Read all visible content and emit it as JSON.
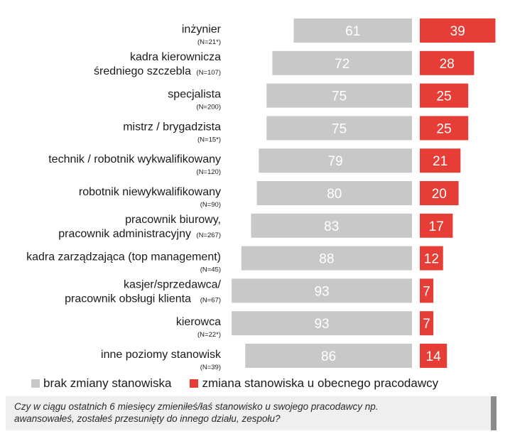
{
  "chart_data": {
    "type": "bar",
    "orientation": "horizontal-diverging",
    "categories": [
      {
        "label": [
          "inżynier"
        ],
        "n": "(N=21*)"
      },
      {
        "label": [
          "kadra kierownicza",
          "średniego szczebla"
        ],
        "n": "(N=107)"
      },
      {
        "label": [
          "specjalista"
        ],
        "n": "(N=200)"
      },
      {
        "label": [
          "mistrz / brygadzista"
        ],
        "n": "(N=15*)"
      },
      {
        "label": [
          "technik / robotnik wykwalifikowany"
        ],
        "n": "(N=120)"
      },
      {
        "label": [
          "robotnik niewykwalifikowany"
        ],
        "n": "(N=90)"
      },
      {
        "label": [
          "pracownik biurowy,",
          "pracownik administracyjny"
        ],
        "n": "(N=267)"
      },
      {
        "label": [
          "kadra zarządzająca (top management)"
        ],
        "n": "(N=45)"
      },
      {
        "label": [
          "kasjer/sprzedawca/",
          "pracownik obsługi klienta"
        ],
        "n": "(N=67)"
      },
      {
        "label": [
          "kierowca"
        ],
        "n": "(N=22*)"
      },
      {
        "label": [
          "inne poziomy stanowisk"
        ],
        "n": "(N=39)"
      }
    ],
    "series": [
      {
        "name": "brak zmiany stanowiska",
        "color": "#c8c8c8",
        "text_color": "#ffffff",
        "values": [
          61,
          72,
          75,
          75,
          79,
          80,
          83,
          88,
          93,
          93,
          86
        ]
      },
      {
        "name": "zmiana stanowiska u obecnego pracodawcy",
        "color": "#e63e36",
        "text_color": "#ffffff",
        "values": [
          39,
          28,
          25,
          25,
          21,
          20,
          17,
          12,
          7,
          7,
          14
        ]
      }
    ],
    "legend_position": "bottom-left",
    "grid": false
  },
  "legend": {
    "item1": "brak zmiany stanowiska",
    "item2": "zmiana stanowiska u obecnego pracodawcy"
  },
  "question": {
    "line1": "Czy w ciągu ostatnich 6 miesięcy zmieniłeś/łaś stanowisko u swojego pracodawcy np.",
    "line2": "awansowałeś, zostałeś przesunięty do innego działu, zespołu?"
  }
}
